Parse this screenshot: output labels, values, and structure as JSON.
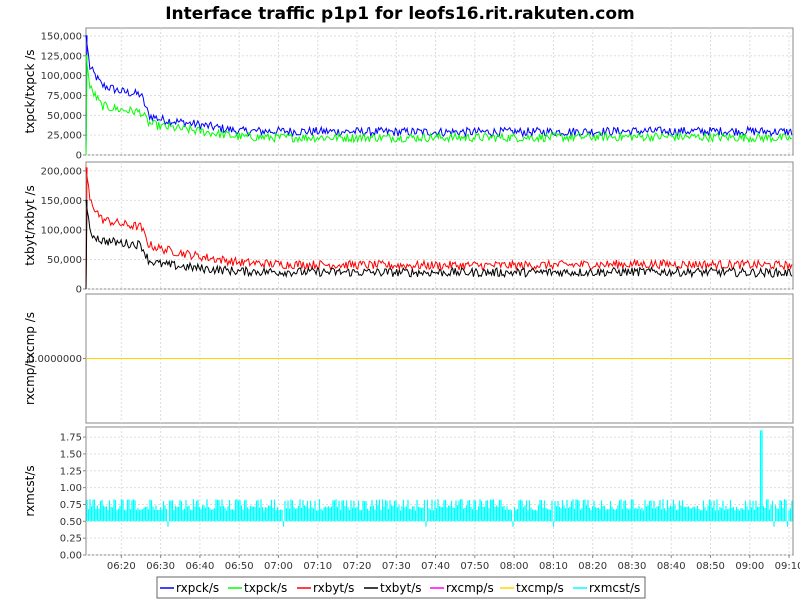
{
  "chart_data": {
    "type": "line",
    "title": "Interface traffic p1p1 for leofs16.rit.rakuten.com",
    "x_ticks": [
      "06:20",
      "06:30",
      "06:40",
      "06:50",
      "07:00",
      "07:10",
      "07:20",
      "07:30",
      "07:40",
      "07:50",
      "08:00",
      "08:10",
      "08:20",
      "08:30",
      "08:40",
      "08:50",
      "09:00",
      "09:10"
    ],
    "x_range": [
      "06:11",
      "09:11"
    ],
    "grid": true,
    "legend_position": "bottom",
    "panels": [
      {
        "ylabel": "txpck/txpck /s",
        "ylim": [
          0,
          160000
        ],
        "y_ticks": [
          "0",
          "25,000",
          "50,000",
          "75,000",
          "100,000",
          "125,000",
          "150,000"
        ],
        "y_tick_values": [
          0,
          25000,
          50000,
          75000,
          100000,
          125000,
          150000
        ],
        "series": [
          {
            "name": "rxpck/s",
            "color": "#0000ff",
            "x": [
              "06:11",
              "06:12",
              "06:15",
              "06:20",
              "06:25",
              "06:27",
              "06:30",
              "06:40",
              "06:50",
              "07:00",
              "07:30",
              "08:00",
              "08:30",
              "08:40",
              "09:00",
              "09:11"
            ],
            "values": [
              150000,
              110000,
              88000,
              80000,
              76000,
              50000,
              45000,
              38000,
              30000,
              30000,
              29000,
              29000,
              30000,
              30000,
              30000,
              29000
            ]
          },
          {
            "name": "txpck/s",
            "color": "#00ff00",
            "x": [
              "06:11",
              "06:12",
              "06:15",
              "06:20",
              "06:25",
              "06:27",
              "06:30",
              "06:40",
              "06:50",
              "07:00",
              "07:30",
              "08:00",
              "08:30",
              "08:40",
              "09:00",
              "09:11"
            ],
            "values": [
              125000,
              85000,
              62000,
              57000,
              54000,
              40000,
              36000,
              30000,
              23000,
              22000,
              22000,
              22000,
              23000,
              23000,
              22000,
              21000
            ]
          }
        ]
      },
      {
        "ylabel": "txbyt/rxbyt /s",
        "ylim": [
          0,
          215000
        ],
        "y_ticks": [
          "0",
          "50,000",
          "100,000",
          "150,000",
          "200,000"
        ],
        "y_tick_values": [
          0,
          50000,
          100000,
          150000,
          200000
        ],
        "series": [
          {
            "name": "rxbyt/s",
            "color": "#ff0000",
            "x": [
              "06:11",
              "06:12",
              "06:15",
              "06:20",
              "06:25",
              "06:27",
              "06:30",
              "06:40",
              "06:50",
              "07:00",
              "07:30",
              "08:00",
              "08:30",
              "08:40",
              "09:00",
              "09:11"
            ],
            "values": [
              205000,
              150000,
              118000,
              110000,
              105000,
              75000,
              68000,
              55000,
              45000,
              42000,
              40000,
              40000,
              42000,
              42000,
              41000,
              40000
            ]
          },
          {
            "name": "txbyt/s",
            "color": "#000000",
            "x": [
              "06:11",
              "06:12",
              "06:15",
              "06:20",
              "06:25",
              "06:27",
              "06:30",
              "06:40",
              "06:50",
              "07:00",
              "07:30",
              "08:00",
              "08:30",
              "08:40",
              "09:00",
              "09:11"
            ],
            "values": [
              150000,
              95000,
              82000,
              78000,
              75000,
              48000,
              42000,
              35000,
              30000,
              29000,
              28000,
              28000,
              29000,
              29000,
              28000,
              27000
            ]
          }
        ]
      },
      {
        "ylabel": "rxcmp/txcmp /s",
        "ylim": [
          -1,
          1
        ],
        "y_ticks": [
          "0.0000000"
        ],
        "y_tick_values": [
          0
        ],
        "series": [
          {
            "name": "rxcmp/s",
            "color": "#ff00ff",
            "x": [
              "06:11",
              "09:11"
            ],
            "values": [
              0,
              0
            ]
          },
          {
            "name": "txcmp/s",
            "color": "#ffd700",
            "x": [
              "06:11",
              "09:11"
            ],
            "values": [
              0,
              0
            ]
          }
        ]
      },
      {
        "ylabel": "rxmcst/s",
        "ylim": [
          0,
          1.9
        ],
        "y_ticks": [
          "0.00",
          "0.25",
          "0.50",
          "0.75",
          "1.00",
          "1.25",
          "1.50",
          "1.75"
        ],
        "y_tick_values": [
          0,
          0.25,
          0.5,
          0.75,
          1.0,
          1.25,
          1.5,
          1.75
        ],
        "series": [
          {
            "name": "rxmcst/s",
            "color": "#00ffff",
            "baseline": 0.5,
            "level": 0.7,
            "spike_x": "09:03",
            "spike_value": 1.85
          }
        ]
      }
    ]
  }
}
